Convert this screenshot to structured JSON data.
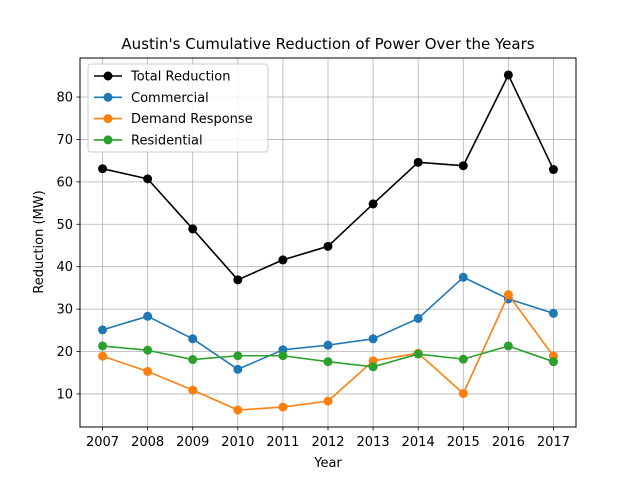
{
  "chart_data": {
    "type": "line",
    "title": "Austin's Cumulative Reduction of Power Over the Years",
    "xlabel": "Year",
    "ylabel": "Reduction (MW)",
    "x": [
      "2007",
      "2008",
      "2009",
      "2010",
      "2011",
      "2012",
      "2013",
      "2014",
      "2015",
      "2016",
      "2017"
    ],
    "xlim": [
      2006.5,
      2017.5
    ],
    "ylim": [
      2.2,
      89.2
    ],
    "yticks": [
      10,
      20,
      30,
      40,
      50,
      60,
      70,
      80
    ],
    "grid": true,
    "legend": "top-left",
    "series": [
      {
        "name": "Total Reduction",
        "color": "#000000",
        "values": [
          63.1,
          60.7,
          48.9,
          36.9,
          41.6,
          44.8,
          54.8,
          64.6,
          63.8,
          85.2,
          62.9
        ]
      },
      {
        "name": "Commercial",
        "color": "#1f77b4",
        "values": [
          25.1,
          28.3,
          23.0,
          15.8,
          20.4,
          21.5,
          23.0,
          27.8,
          37.5,
          32.4,
          29.0
        ]
      },
      {
        "name": "Demand Response",
        "color": "#ff7f0e",
        "values": [
          18.9,
          15.3,
          10.9,
          6.2,
          6.9,
          8.3,
          17.8,
          19.6,
          10.1,
          33.4,
          18.9
        ]
      },
      {
        "name": "Residential",
        "color": "#2ca02c",
        "values": [
          21.3,
          20.3,
          18.1,
          19.0,
          19.0,
          17.6,
          16.4,
          19.4,
          18.2,
          21.3,
          17.6
        ]
      }
    ]
  }
}
